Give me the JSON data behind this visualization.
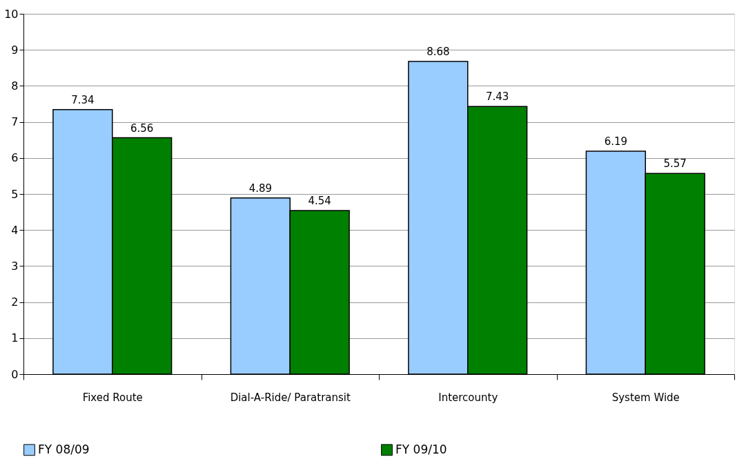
{
  "chart_data": {
    "type": "bar",
    "categories": [
      "Fixed Route",
      "Dial-A-Ride/ Paratransit",
      "Intercounty",
      "System Wide"
    ],
    "series": [
      {
        "name": "FY 08/09",
        "color": "#99ccff",
        "values": [
          7.34,
          4.89,
          8.68,
          6.19
        ]
      },
      {
        "name": "FY 09/10",
        "color": "#008000",
        "values": [
          6.56,
          4.54,
          7.43,
          5.57
        ]
      }
    ],
    "ylim": [
      0,
      10
    ],
    "yticks": [
      0,
      1,
      2,
      3,
      4,
      5,
      6,
      7,
      8,
      9,
      10
    ],
    "grid": "y",
    "legend": "bottom",
    "data_labels": true
  }
}
